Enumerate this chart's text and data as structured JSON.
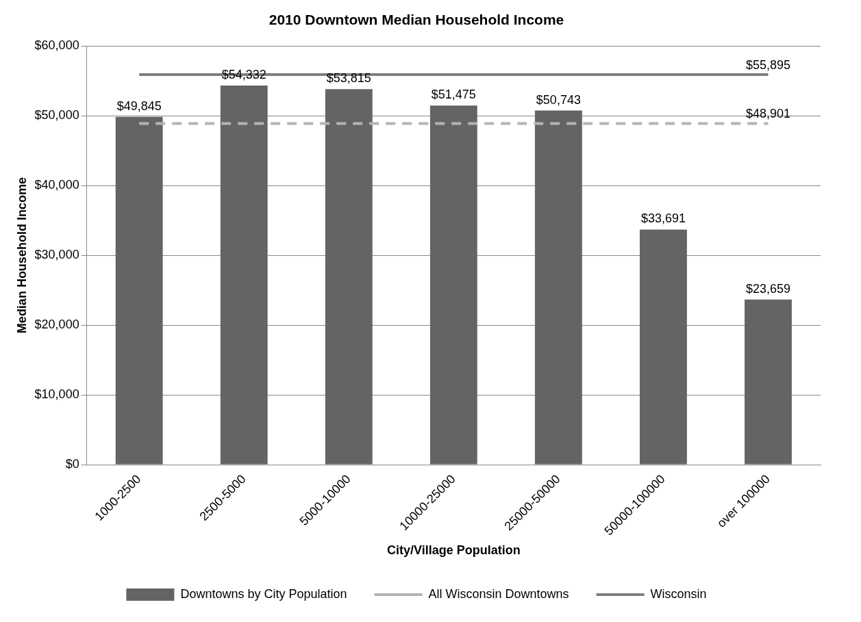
{
  "chart_data": {
    "type": "bar",
    "title": "2010 Downtown Median Household Income",
    "xlabel": "City/Village Population",
    "ylabel": "Median Household Income",
    "categories": [
      "1000-2500",
      "2500-5000",
      "5000-10000",
      "10000-25000",
      "25000-50000",
      "50000-100000",
      "over 100000"
    ],
    "series": [
      {
        "name": "Downtowns by City Population",
        "color": "#646464",
        "values": [
          49845,
          54332,
          53815,
          51475,
          50743,
          33691,
          23659
        ],
        "value_labels": [
          "$49,845",
          "$54,332",
          "$53,815",
          "$51,475",
          "$50,743",
          "$33,691",
          "$23,659"
        ]
      },
      {
        "name": "All Wisconsin Downtowns",
        "type": "line",
        "color": "#b4b4b4",
        "line_style": "dashed",
        "values": [
          48901,
          48901,
          48901,
          48901,
          48901,
          48901,
          48901
        ],
        "value_labels": [
          null,
          null,
          null,
          null,
          null,
          null,
          "$48,901"
        ]
      },
      {
        "name": "Wisconsin",
        "type": "line",
        "color": "#7f7f7f",
        "line_style": "solid",
        "values": [
          55895,
          55895,
          55895,
          55895,
          55895,
          55895,
          55895
        ],
        "value_labels": [
          null,
          null,
          null,
          null,
          null,
          null,
          "$55,895"
        ]
      }
    ],
    "ylim": [
      0,
      60000
    ],
    "yticks": [
      {
        "value": 0,
        "label": "$0"
      },
      {
        "value": 10000,
        "label": "$10,000"
      },
      {
        "value": 20000,
        "label": "$20,000"
      },
      {
        "value": 30000,
        "label": "$30,000"
      },
      {
        "value": 40000,
        "label": "$40,000"
      },
      {
        "value": 50000,
        "label": "$50,000"
      },
      {
        "value": 60000,
        "label": "$60,000"
      }
    ],
    "grid": "y",
    "legend": "bottom",
    "marker": "none"
  }
}
